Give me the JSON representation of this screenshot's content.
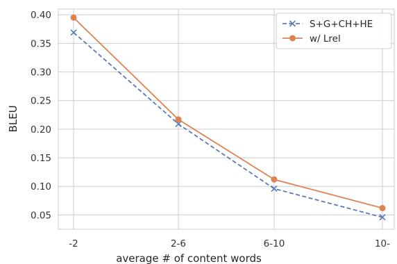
{
  "chart_data": {
    "type": "line",
    "xlabel": "average # of content words",
    "ylabel": "BLEU",
    "categories": [
      "-2",
      "2-6",
      "6-10",
      "10-"
    ],
    "ylim": [
      0.025,
      0.41
    ],
    "yticks": [
      0.05,
      0.1,
      0.15,
      0.2,
      0.25,
      0.3,
      0.35,
      0.4
    ],
    "ytick_labels": [
      "0.05",
      "0.10",
      "0.15",
      "0.20",
      "0.25",
      "0.30",
      "0.35",
      "0.40"
    ],
    "grid": true,
    "legend_position": "top-right",
    "series": [
      {
        "name": "S+G+CH+HE",
        "values": [
          0.369,
          0.209,
          0.096,
          0.046
        ],
        "color": "#5a79b8",
        "marker": "x",
        "dash": "dashed"
      },
      {
        "name": "w/ Lrel",
        "values": [
          0.395,
          0.217,
          0.112,
          0.062
        ],
        "color": "#dd8452",
        "marker": "circle",
        "dash": "solid"
      }
    ]
  }
}
